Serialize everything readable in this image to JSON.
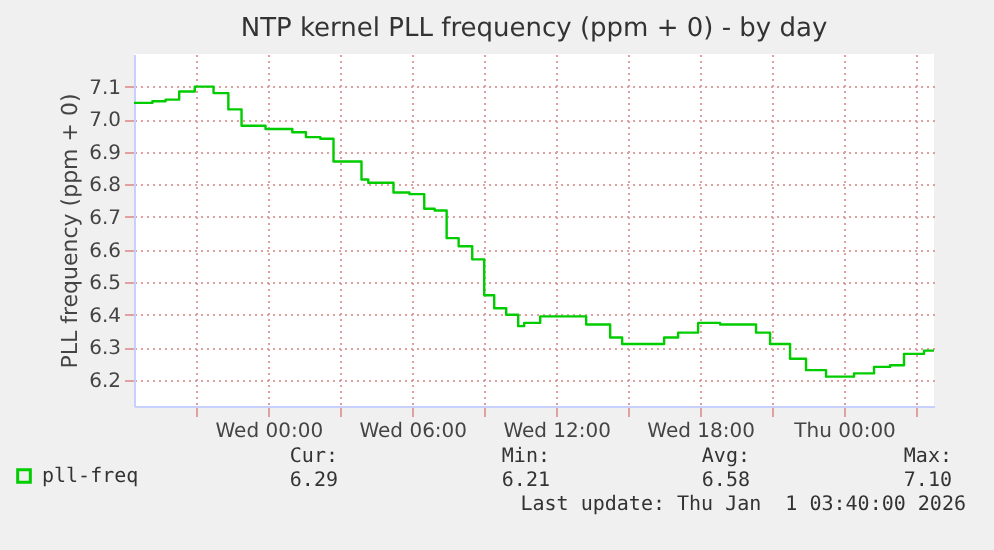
{
  "chart_data": {
    "type": "step",
    "title": "NTP kernel PLL frequency (ppm + 0) - by day",
    "ylabel": "PLL frequency (ppm + 0)",
    "x": [
      "2025-12-30T18:24",
      "2025-12-30T19:10",
      "2025-12-30T19:43",
      "2025-12-30T20:17",
      "2025-12-30T20:56",
      "2025-12-30T21:43",
      "2025-12-30T22:20",
      "2025-12-30T22:53",
      "2025-12-30T23:53",
      "2025-12-31T01:00",
      "2025-12-31T01:34",
      "2025-12-31T02:10",
      "2025-12-31T02:43",
      "2025-12-31T03:53",
      "2025-12-31T04:10",
      "2025-12-31T05:13",
      "2025-12-31T05:53",
      "2025-12-31T06:30",
      "2025-12-31T06:56",
      "2025-12-31T07:26",
      "2025-12-31T07:56",
      "2025-12-31T08:30",
      "2025-12-31T09:00",
      "2025-12-31T09:25",
      "2025-12-31T09:55",
      "2025-12-31T10:25",
      "2025-12-31T10:40",
      "2025-12-31T11:20",
      "2025-12-31T13:15",
      "2025-12-31T14:15",
      "2025-12-31T14:45",
      "2025-12-31T16:30",
      "2025-12-31T17:05",
      "2025-12-31T17:55",
      "2025-12-31T18:50",
      "2025-12-31T20:20",
      "2025-12-31T20:55",
      "2025-12-31T21:45",
      "2025-12-31T22:25",
      "2025-12-31T23:15",
      "2026-01-01T00:25",
      "2026-01-01T01:15",
      "2026-01-01T01:55",
      "2026-01-01T02:30",
      "2026-01-01T03:20",
      "2026-01-01T03:45"
    ],
    "series": [
      {
        "name": "pll-freq",
        "color": "#00cc00",
        "values": [
          7.05,
          7.055,
          7.06,
          7.085,
          7.1,
          7.08,
          7.03,
          6.98,
          6.97,
          6.96,
          6.945,
          6.94,
          6.87,
          6.815,
          6.805,
          6.775,
          6.77,
          6.725,
          6.72,
          6.635,
          6.61,
          6.57,
          6.46,
          6.42,
          6.4,
          6.365,
          6.375,
          6.395,
          6.37,
          6.33,
          6.31,
          6.33,
          6.345,
          6.375,
          6.37,
          6.345,
          6.31,
          6.265,
          6.23,
          6.21,
          6.22,
          6.24,
          6.245,
          6.28,
          6.29,
          6.29
        ]
      }
    ],
    "xlim": [
      "2025-12-30T18:24",
      "2026-01-01T03:45"
    ],
    "xticks": [
      {
        "value": "2025-12-30T21:00",
        "label": null
      },
      {
        "value": "2025-12-31T00:00",
        "label": "Wed 00:00"
      },
      {
        "value": "2025-12-31T03:00",
        "label": null
      },
      {
        "value": "2025-12-31T06:00",
        "label": "Wed 06:00"
      },
      {
        "value": "2025-12-31T09:00",
        "label": null
      },
      {
        "value": "2025-12-31T12:00",
        "label": "Wed 12:00"
      },
      {
        "value": "2025-12-31T15:00",
        "label": null
      },
      {
        "value": "2025-12-31T18:00",
        "label": "Wed 18:00"
      },
      {
        "value": "2025-12-31T21:00",
        "label": null
      },
      {
        "value": "2026-01-01T00:00",
        "label": "Thu 00:00"
      },
      {
        "value": "2026-01-01T03:00",
        "label": null
      }
    ],
    "ylim": [
      6.12,
      7.2
    ],
    "yticks": [
      6.2,
      6.3,
      6.4,
      6.5,
      6.6,
      6.7,
      6.8,
      6.9,
      {
        "value": 7,
        "label": "7.0"
      },
      7.1
    ],
    "grid": true,
    "legend": "bottom left",
    "annotations": [
      "Cur:",
      "Min:",
      "Avg:",
      "Max:",
      "6.29",
      "6.21",
      "6.58",
      "7.10",
      "Last update: Thu Jan  1 03:40:00 2026"
    ]
  }
}
